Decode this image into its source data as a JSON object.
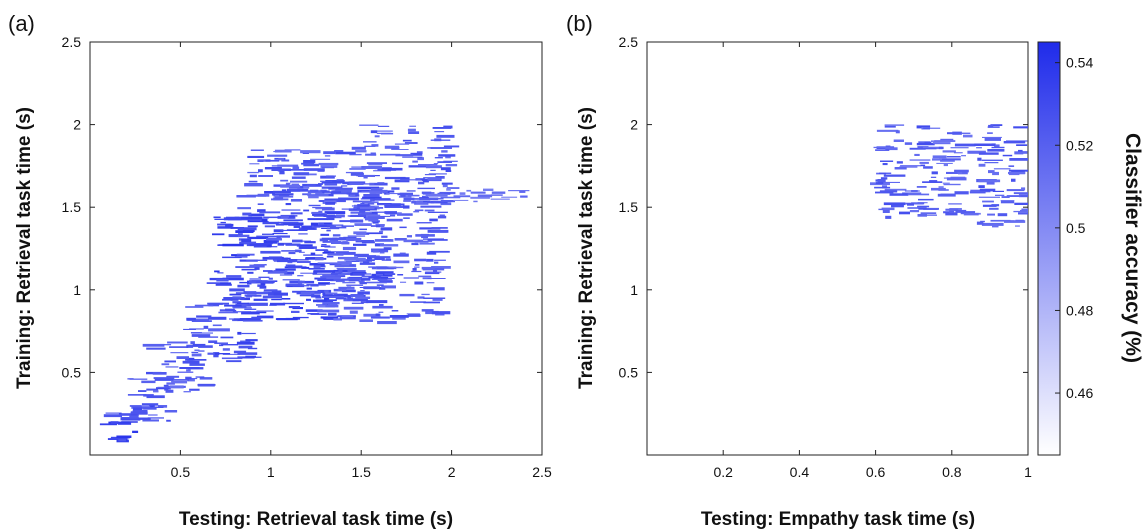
{
  "chart_data": [
    {
      "panel_label": "(a)",
      "type": "heatmap",
      "xlabel": "Testing: Retrieval task time (s)",
      "ylabel": "Training: Retrieval task time (s)",
      "xlim": [
        0.0,
        2.5
      ],
      "ylim": [
        0.0,
        2.5
      ],
      "xticks": [
        0.5,
        1,
        1.5,
        2,
        2.5
      ],
      "xtick_labels": [
        "0.5",
        "1",
        "1.5",
        "2",
        "2.5"
      ],
      "yticks": [
        0.5,
        1,
        1.5,
        2,
        2.5
      ],
      "ytick_labels": [
        "0.5",
        "1",
        "1.5",
        "2",
        "2.5"
      ],
      "grid": false,
      "significant_regions": [
        {
          "x0": 0.08,
          "x1": 0.28,
          "y0": 0.08,
          "y1": 0.28,
          "value": 0.54
        },
        {
          "x0": 0.2,
          "x1": 0.45,
          "y0": 0.2,
          "y1": 0.5,
          "value": 0.535
        },
        {
          "x0": 0.35,
          "x1": 0.65,
          "y0": 0.35,
          "y1": 0.7,
          "value": 0.53
        },
        {
          "x0": 0.55,
          "x1": 0.9,
          "y0": 0.55,
          "y1": 0.95,
          "value": 0.535
        },
        {
          "x0": 0.7,
          "x1": 1.35,
          "y0": 0.8,
          "y1": 1.45,
          "value": 0.54
        },
        {
          "x0": 0.85,
          "x1": 1.65,
          "y0": 0.95,
          "y1": 1.65,
          "value": 0.535
        },
        {
          "x0": 1.3,
          "x1": 1.95,
          "y0": 0.8,
          "y1": 1.6,
          "value": 0.53
        },
        {
          "x0": 0.9,
          "x1": 1.5,
          "y0": 1.55,
          "y1": 1.85,
          "value": 0.53
        },
        {
          "x0": 1.45,
          "x1": 2.0,
          "y0": 1.5,
          "y1": 2.0,
          "value": 0.53
        },
        {
          "x0": 1.9,
          "x1": 2.4,
          "y0": 1.53,
          "y1": 1.62,
          "value": 0.52
        }
      ]
    },
    {
      "panel_label": "(b)",
      "type": "heatmap",
      "xlabel": "Testing: Empathy task time (s)",
      "ylabel": "Training: Retrieval task time (s)",
      "xlim": [
        0.0,
        1.0
      ],
      "ylim": [
        0.0,
        2.5
      ],
      "xticks": [
        0.2,
        0.4,
        0.6,
        0.8,
        1
      ],
      "xtick_labels": [
        "0.2",
        "0.4",
        "0.6",
        "0.8",
        "1"
      ],
      "yticks": [
        0.5,
        1,
        1.5,
        2,
        2.5
      ],
      "ytick_labels": [
        "0.5",
        "1",
        "1.5",
        "2",
        "2.5"
      ],
      "grid": false,
      "significant_regions": [
        {
          "x0": 0.61,
          "x1": 0.76,
          "y0": 1.43,
          "y1": 2.0,
          "value": 0.53
        },
        {
          "x0": 0.76,
          "x1": 0.87,
          "y0": 1.45,
          "y1": 1.95,
          "value": 0.525
        },
        {
          "x0": 0.87,
          "x1": 1.0,
          "y0": 1.38,
          "y1": 2.0,
          "value": 0.53
        }
      ]
    }
  ],
  "colorbar": {
    "label": "Classifier accuracy (%)",
    "range": [
      0.445,
      0.545
    ],
    "ticks": [
      0.46,
      0.48,
      0.5,
      0.52,
      0.54
    ],
    "tick_labels": [
      "0.46",
      "0.48",
      "0.5",
      "0.52",
      "0.54"
    ],
    "color_low": "#ffffff",
    "color_high": "#1f2bea"
  }
}
